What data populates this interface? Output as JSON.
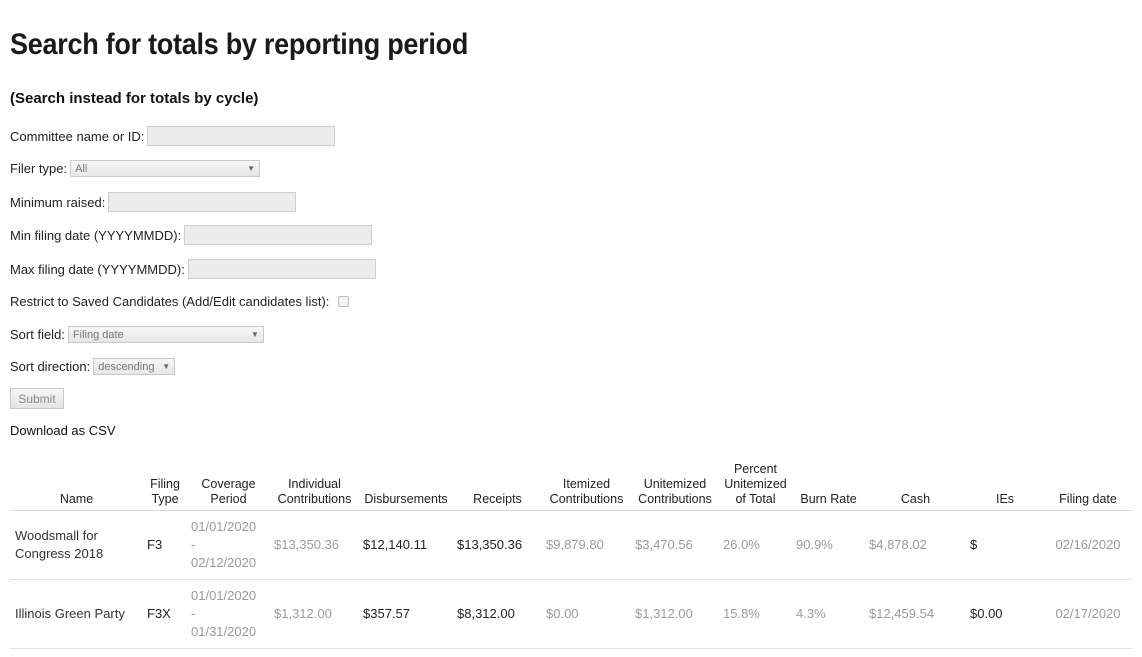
{
  "page": {
    "title": "Search for totals by reporting period",
    "cycle_link": "(Search instead for totals by cycle)"
  },
  "form": {
    "committee_label": "Committee name or ID:",
    "committee_value": "",
    "filer_type_label": "Filer type:",
    "filer_type_value": "All",
    "min_raised_label": "Minimum raised:",
    "min_raised_value": "",
    "min_date_label": "Min filing date (YYYYMMDD):",
    "min_date_value": "",
    "max_date_label": "Max filing date (YYYYMMDD):",
    "max_date_value": "",
    "restrict_label": "Restrict to Saved Candidates (Add/Edit candidates list):",
    "sort_field_label": "Sort field:",
    "sort_field_value": "Filing date",
    "sort_dir_label": "Sort direction:",
    "sort_dir_value": "descending",
    "submit_label": "Submit",
    "csv_label": "Download as CSV"
  },
  "table": {
    "headers": {
      "name": "Name",
      "filing_type": [
        "Filing",
        "Type"
      ],
      "coverage": [
        "Coverage",
        "Period"
      ],
      "individual": [
        "Individual",
        "Contributions"
      ],
      "disbursements": "Disbursements",
      "receipts": "Receipts",
      "itemized": [
        "Itemized",
        "Contributions"
      ],
      "unitemized": [
        "Unitemized",
        "Contributions"
      ],
      "percent": [
        "Percent",
        "Unitemized",
        "of Total"
      ],
      "burn_rate": "Burn Rate",
      "cash": "Cash",
      "ies": "IEs",
      "filing_date": "Filing date"
    },
    "rows": [
      {
        "name": "Woodsmall for Congress 2018",
        "type": "F3",
        "period_start": "01/01/2020",
        "period_sep": "-",
        "period_end": "02/12/2020",
        "individual": "$13,350.36",
        "disbursements": "$12,140.11",
        "receipts": "$13,350.36",
        "itemized": "$9,879.80",
        "unitemized": "$3,470.56",
        "percent": "26.0%",
        "burn_rate": "90.9%",
        "cash": "$4,878.02",
        "ies": "$",
        "filing_date": "02/16/2020"
      },
      {
        "name": "Illinois Green Party",
        "type": "F3X",
        "period_start": "01/01/2020",
        "period_sep": "-",
        "period_end": "01/31/2020",
        "individual": "$1,312.00",
        "disbursements": "$357.57",
        "receipts": "$8,312.00",
        "itemized": "$0.00",
        "unitemized": "$1,312.00",
        "percent": "15.8%",
        "burn_rate": "4.3%",
        "cash": "$12,459.54",
        "ies": "$0.00",
        "filing_date": "02/17/2020"
      }
    ]
  }
}
